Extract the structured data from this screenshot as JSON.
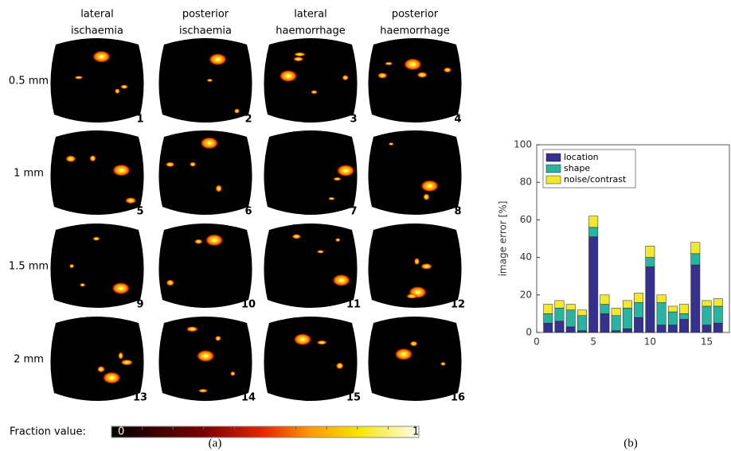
{
  "panel_a": {
    "columns": [
      [
        "lateral",
        "ischaemia"
      ],
      [
        "posterior",
        "ischaemia"
      ],
      [
        "lateral",
        "haemorrhage"
      ],
      [
        "posterior",
        "haemorrhage"
      ]
    ],
    "rows": [
      "0.5 mm",
      "1 mm",
      "1.5 mm",
      "2 mm"
    ],
    "image_numbers": [
      "1",
      "2",
      "3",
      "4",
      "5",
      "6",
      "7",
      "8",
      "9",
      "10",
      "11",
      "12",
      "13",
      "14",
      "15",
      "16"
    ],
    "colorbar_label": "Fraction value:",
    "colorbar_ticks": [
      "0",
      "1"
    ],
    "caption": "(a)"
  },
  "chart_data": {
    "type": "stacked_bar",
    "caption": "(b)",
    "ylabel": "image error [%]",
    "x": [
      1,
      2,
      3,
      4,
      5,
      6,
      7,
      8,
      9,
      10,
      11,
      12,
      13,
      14,
      15,
      16
    ],
    "series": [
      {
        "name": "location",
        "color": "#35318f",
        "values": [
          5,
          6,
          3,
          1,
          51,
          10,
          1,
          2,
          8,
          35,
          4,
          4,
          7,
          36,
          4,
          5
        ]
      },
      {
        "name": "shape",
        "color": "#2ab3a0",
        "values": [
          5,
          7,
          9,
          8,
          5,
          5,
          8,
          11,
          8,
          5,
          12,
          7,
          3,
          6,
          10,
          9
        ]
      },
      {
        "name": "noise/contrast",
        "color": "#f3e830",
        "values": [
          5,
          4,
          3,
          3,
          6,
          5,
          4,
          4,
          5,
          6,
          4,
          3,
          5,
          6,
          3,
          4
        ]
      }
    ],
    "xlim": [
      0,
      17
    ],
    "xticks": [
      0,
      5,
      10,
      15
    ],
    "ylim": [
      0,
      100
    ],
    "yticks": [
      0,
      20,
      40,
      60,
      80,
      100
    ],
    "legend": "upper-left"
  }
}
